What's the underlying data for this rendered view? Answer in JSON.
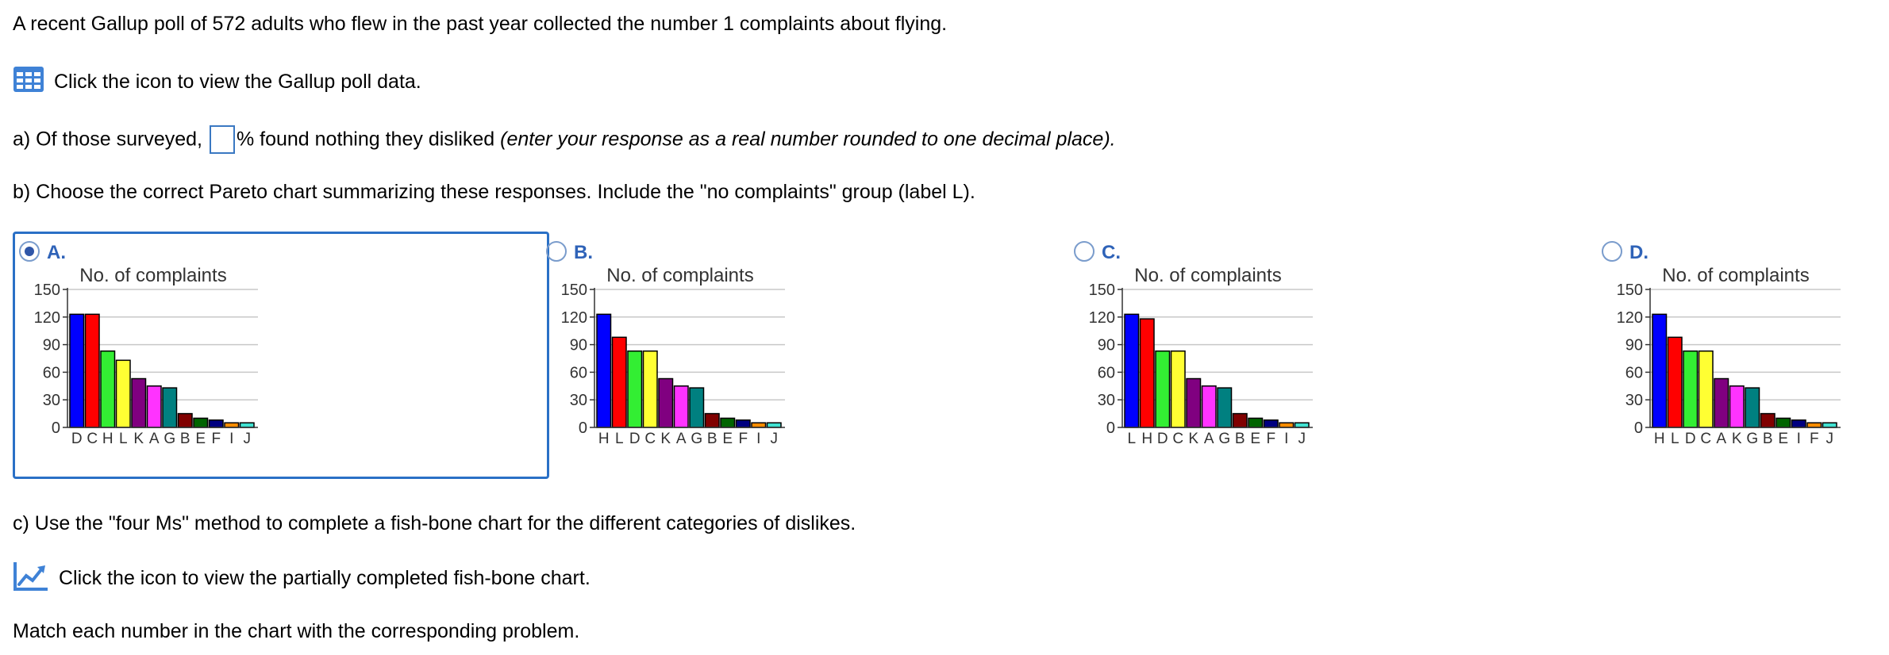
{
  "intro": "A recent Gallup poll of 572 adults who flew in the past year collected the number 1 complaints about flying.",
  "data_link": {
    "icon": "table-icon",
    "text": "Click the icon to view the Gallup poll data."
  },
  "part_a": {
    "prefix": "a) Of those surveyed,",
    "suffix": "% found nothing they disliked",
    "note": "(enter your response as a real number rounded to one decimal place).",
    "value": ""
  },
  "part_b": "b) Choose the correct Pareto chart summarizing these responses. Include the \"no complaints\" group (label L).",
  "options": [
    {
      "label": "A.",
      "selected": true,
      "chart_data": {
        "type": "bar",
        "title": "No. of complaints",
        "categories": [
          "D",
          "C",
          "H",
          "L",
          "K",
          "A",
          "G",
          "B",
          "E",
          "F",
          "I",
          "J"
        ],
        "values": [
          123,
          123,
          83,
          73,
          53,
          45,
          43,
          15,
          10,
          8,
          5,
          5
        ],
        "colors": [
          "#0000ff",
          "#ff0000",
          "#33ee33",
          "#ffff33",
          "#800080",
          "#ff33ff",
          "#008080",
          "#800000",
          "#006400",
          "#000080",
          "#ff8c00",
          "#40e0d0"
        ],
        "ylim": [
          0,
          150
        ],
        "yticks": [
          0,
          30,
          60,
          90,
          120,
          150
        ],
        "grid": true
      }
    },
    {
      "label": "B.",
      "selected": false,
      "chart_data": {
        "type": "bar",
        "title": "No. of complaints",
        "categories": [
          "H",
          "L",
          "D",
          "C",
          "K",
          "A",
          "G",
          "B",
          "E",
          "F",
          "I",
          "J"
        ],
        "values": [
          123,
          98,
          83,
          83,
          53,
          45,
          43,
          15,
          10,
          8,
          5,
          5
        ],
        "colors": [
          "#0000ff",
          "#ff0000",
          "#33ee33",
          "#ffff33",
          "#800080",
          "#ff33ff",
          "#008080",
          "#800000",
          "#006400",
          "#000080",
          "#ff8c00",
          "#40e0d0"
        ],
        "ylim": [
          0,
          150
        ],
        "yticks": [
          0,
          30,
          60,
          90,
          120,
          150
        ],
        "grid": true
      }
    },
    {
      "label": "C.",
      "selected": false,
      "chart_data": {
        "type": "bar",
        "title": "No. of complaints",
        "categories": [
          "L",
          "H",
          "D",
          "C",
          "K",
          "A",
          "G",
          "B",
          "E",
          "F",
          "I",
          "J"
        ],
        "values": [
          123,
          118,
          83,
          83,
          53,
          45,
          43,
          15,
          10,
          8,
          5,
          5
        ],
        "colors": [
          "#0000ff",
          "#ff0000",
          "#33ee33",
          "#ffff33",
          "#800080",
          "#ff33ff",
          "#008080",
          "#800000",
          "#006400",
          "#000080",
          "#ff8c00",
          "#40e0d0"
        ],
        "ylim": [
          0,
          150
        ],
        "yticks": [
          0,
          30,
          60,
          90,
          120,
          150
        ],
        "grid": true
      }
    },
    {
      "label": "D.",
      "selected": false,
      "chart_data": {
        "type": "bar",
        "title": "No. of complaints",
        "categories": [
          "H",
          "L",
          "D",
          "C",
          "A",
          "K",
          "G",
          "B",
          "E",
          "I",
          "F",
          "J"
        ],
        "values": [
          123,
          98,
          83,
          83,
          53,
          45,
          43,
          15,
          10,
          8,
          5,
          5
        ],
        "colors": [
          "#0000ff",
          "#ff0000",
          "#33ee33",
          "#ffff33",
          "#800080",
          "#ff33ff",
          "#008080",
          "#800000",
          "#006400",
          "#000080",
          "#ff8c00",
          "#40e0d0"
        ],
        "ylim": [
          0,
          150
        ],
        "yticks": [
          0,
          30,
          60,
          90,
          120,
          150
        ],
        "grid": true
      }
    }
  ],
  "part_c": "c) Use the \"four Ms\" method to complete a fish-bone chart for the different categories of dislikes.",
  "chart_link": {
    "icon": "line-chart-icon",
    "text": "Click the icon to view the partially completed fish-bone chart."
  },
  "match_text": "Match each number in the chart with the corresponding problem."
}
